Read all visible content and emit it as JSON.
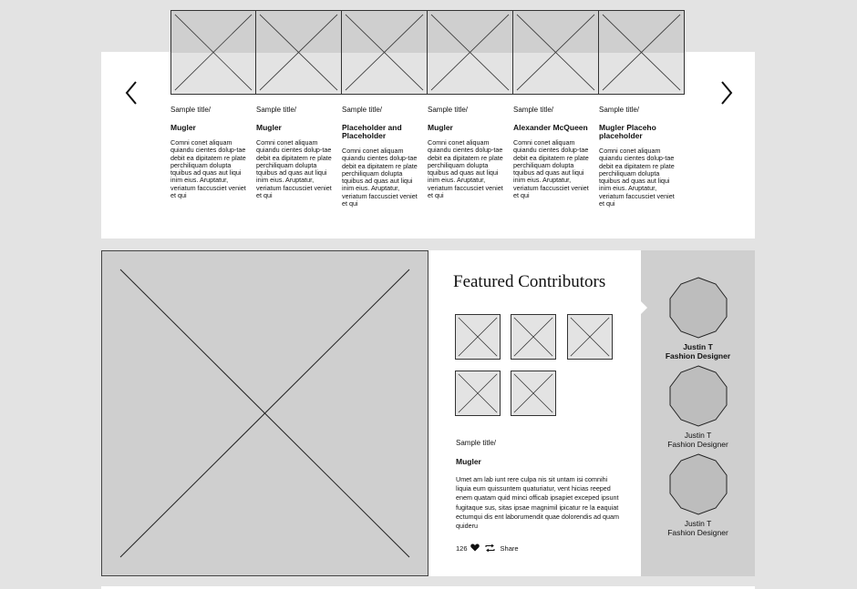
{
  "carousel": {
    "items": [
      {
        "kicker": "Sample title/",
        "name": "Mugler",
        "desc": "Comni conet aliquam quiandu cientes dolup-tae debit ea dipitatem re plate perchiliquam dolupta tquibus ad quas aut liqui inim eius. Aruptatur, veriatum faccusciet veniet et qui"
      },
      {
        "kicker": "Sample title/",
        "name": "Mugler",
        "desc": "Comni conet aliquam quiandu cientes dolup-tae debit ea dipitatem re plate perchiliquam dolupta tquibus ad quas aut liqui inim eius. Aruptatur, veriatum faccusciet veniet et qui"
      },
      {
        "kicker": "Sample title/",
        "name": "Placeholder and Placeholder",
        "desc": "Comni conet aliquam quiandu cientes dolup-tae debit ea dipitatem re plate perchiliquam dolupta tquibus ad quas aut liqui inim eius. Aruptatur, veriatum faccusciet veniet et qui"
      },
      {
        "kicker": "Sample title/",
        "name": "Mugler",
        "desc": "Comni conet aliquam quiandu cientes dolup-tae debit ea dipitatem re plate perchiliquam dolupta tquibus ad quas aut liqui inim eius. Aruptatur, veriatum faccusciet veniet et qui"
      },
      {
        "kicker": "Sample title/",
        "name": "Alexander McQueen",
        "desc": "Comni conet aliquam quiandu cientes dolup-tae debit ea dipitatem re plate perchiliquam dolupta tquibus ad quas aut liqui inim eius. Aruptatur, veriatum faccusciet veniet et qui"
      },
      {
        "kicker": "Sample title/",
        "name": "Mugler Placeho placeholder",
        "desc": "Comni conet aliquam quiandu cientes dolup-tae debit ea dipitatem re plate perchiliquam dolupta tquibus ad quas aut liqui inim eius. Aruptatur, veriatum faccusciet veniet et qui"
      }
    ]
  },
  "featured": {
    "title": "Featured Contributors",
    "kicker": "Sample title/",
    "name": "Mugler",
    "desc": "Umet am lab iunt rere culpa nis sit untam isi comnihi liquia eum quissuntem quaturiatur, vent hicias reeped enem quatam quid minci officab ipsapiet exceped ipsunt fugitaque sus, sitas ipsae magnimil ipicatur re la eaquiat ectumqui dis ent laborumendit quae dolorendis ad quam quideru",
    "likes": "126",
    "share": "Share"
  },
  "contributors": [
    {
      "name": "Justin T",
      "role": "Fashion Designer"
    },
    {
      "name": "Justin T",
      "role": "Fashion Designer"
    },
    {
      "name": "Justin T",
      "role": "Fashion Designer"
    }
  ],
  "icons": {
    "prev": "chevron-left-icon",
    "next": "chevron-right-icon",
    "like": "heart-icon",
    "repost": "repost-icon"
  },
  "colors": {
    "background": "#e3e3e3",
    "panel": "#ffffff",
    "placeholder": "#cfcfcf"
  }
}
